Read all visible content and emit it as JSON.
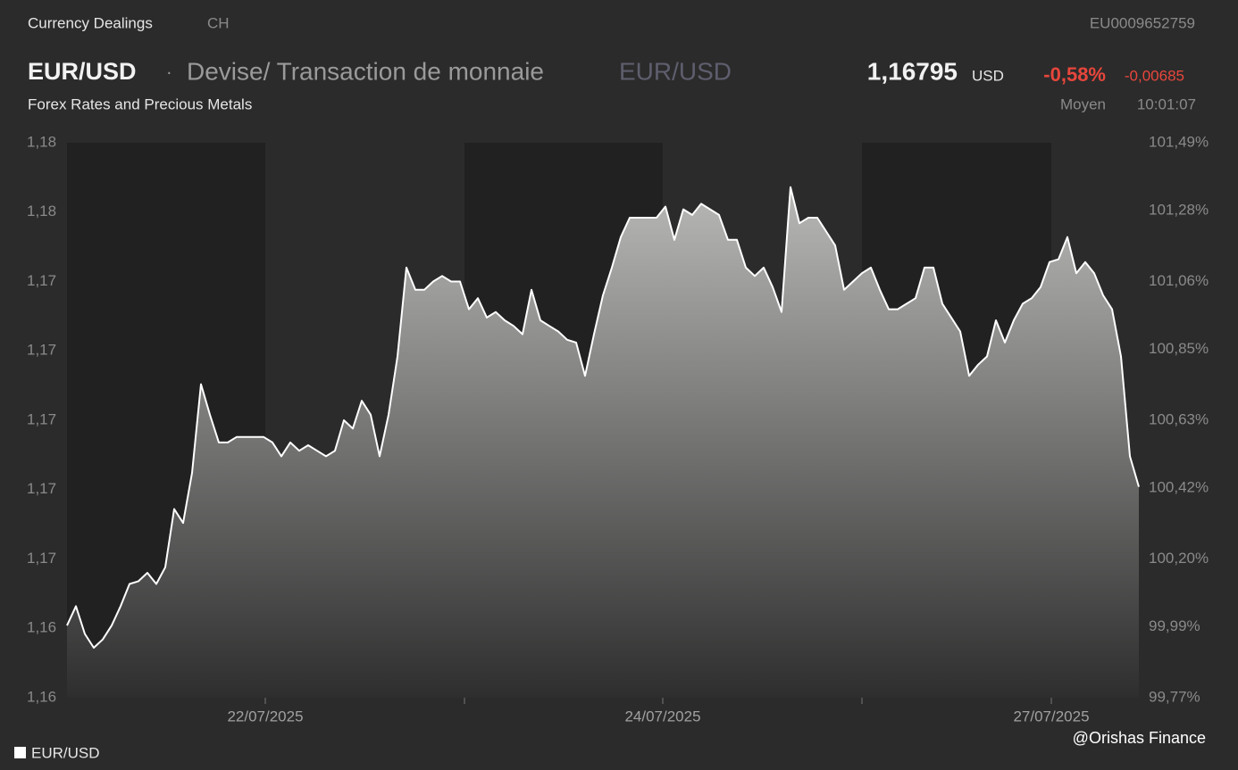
{
  "header": {
    "section": "Currency Dealings",
    "country": "CH",
    "isin": "EU0009652759",
    "symbol": "EUR/USD",
    "separator": "·",
    "description": "Devise/ Transaction de monnaie",
    "symbol_alt": "EUR/USD",
    "price": "1,16795",
    "currency": "USD",
    "change_pct": "-0,58%",
    "change_abs": "-0,00685",
    "market": "Forex Rates and Precious Metals",
    "price_type": "Moyen",
    "time": "10:01:07"
  },
  "watermark": "@Orishas Finance",
  "chart_data": {
    "type": "area",
    "series": [
      {
        "name": "EUR/USD",
        "color": "#ffffff",
        "values": [
          1.1626,
          1.1633,
          1.1623,
          1.1618,
          1.1621,
          1.1626,
          1.1633,
          1.1641,
          1.1642,
          1.1645,
          1.1641,
          1.1647,
          1.1668,
          1.1663,
          1.1681,
          1.1713,
          1.1702,
          1.1692,
          1.1692,
          1.1694,
          1.1694,
          1.1694,
          1.1694,
          1.1692,
          1.1687,
          1.1692,
          1.1689,
          1.1691,
          1.1689,
          1.1687,
          1.1689,
          1.17,
          1.1697,
          1.1707,
          1.1702,
          1.1687,
          1.1702,
          1.1723,
          1.1755,
          1.1747,
          1.1747,
          1.175,
          1.1752,
          1.175,
          1.175,
          1.174,
          1.1744,
          1.1737,
          1.1739,
          1.1736,
          1.1734,
          1.1731,
          1.1747,
          1.1736,
          1.1734,
          1.1732,
          1.1729,
          1.1728,
          1.1716,
          1.1731,
          1.1745,
          1.1755,
          1.1766,
          1.1773,
          1.1773,
          1.1773,
          1.1773,
          1.1777,
          1.1765,
          1.1776,
          1.1774,
          1.1778,
          1.1776,
          1.1774,
          1.1765,
          1.1765,
          1.1755,
          1.1752,
          1.1755,
          1.1748,
          1.1739,
          1.1784,
          1.1771,
          1.1773,
          1.1773,
          1.1768,
          1.1763,
          1.1747,
          1.175,
          1.1753,
          1.1755,
          1.1747,
          1.174,
          1.174,
          1.1742,
          1.1744,
          1.1755,
          1.1755,
          1.1742,
          1.1737,
          1.1732,
          1.1716,
          1.172,
          1.1723,
          1.1736,
          1.1728,
          1.1736,
          1.1742,
          1.1744,
          1.1748,
          1.1757,
          1.1758,
          1.1766,
          1.1753,
          1.1757,
          1.1753,
          1.1745,
          1.174,
          1.1723,
          1.1687,
          1.1676
        ]
      }
    ],
    "xlim": [
      0,
      120
    ],
    "xticks": [
      {
        "value": 22.2,
        "label": "22/07/2025"
      },
      {
        "value": 44.5,
        "label": null
      },
      {
        "value": 66.7,
        "label": "24/07/2025"
      },
      {
        "value": 89,
        "label": null
      },
      {
        "value": 110.2,
        "label": "27/07/2025"
      }
    ],
    "ylim": [
      1.16,
      1.18
    ],
    "yticks": [
      {
        "value": 1.16,
        "label": "1,16"
      },
      {
        "value": 1.1625,
        "label": "1,16"
      },
      {
        "value": 1.165,
        "label": "1,17"
      },
      {
        "value": 1.1675,
        "label": "1,17"
      },
      {
        "value": 1.17,
        "label": "1,17"
      },
      {
        "value": 1.1725,
        "label": "1,17"
      },
      {
        "value": 1.175,
        "label": "1,17"
      },
      {
        "value": 1.1775,
        "label": "1,18"
      },
      {
        "value": 1.18,
        "label": "1,18"
      }
    ],
    "y2lim": [
      99.77,
      101.49
    ],
    "y2ticks": [
      {
        "value": 99.77,
        "label": "99,77%"
      },
      {
        "value": 99.99,
        "label": "99,99%"
      },
      {
        "value": 100.2,
        "label": "100,20%"
      },
      {
        "value": 100.42,
        "label": "100,42%"
      },
      {
        "value": 100.63,
        "label": "100,63%"
      },
      {
        "value": 100.85,
        "label": "100,85%"
      },
      {
        "value": 101.06,
        "label": "101,06%"
      },
      {
        "value": 101.28,
        "label": "101,28%"
      },
      {
        "value": 101.49,
        "label": "101,49%"
      }
    ],
    "legend": "bottom-left"
  }
}
